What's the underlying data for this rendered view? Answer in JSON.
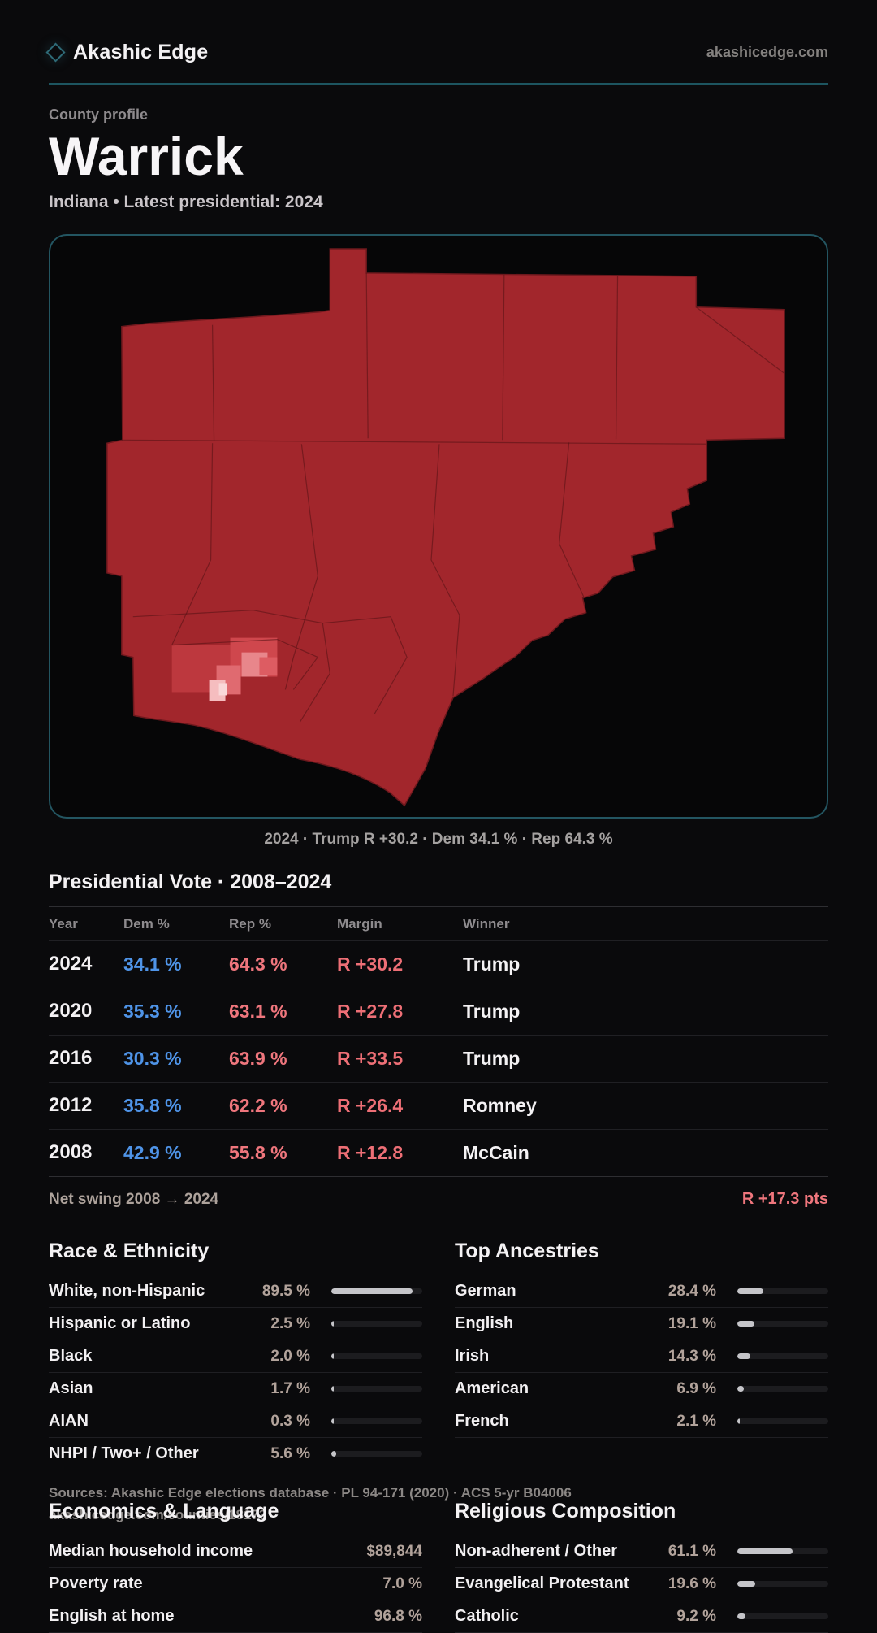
{
  "brand": {
    "name": "Akashic Edge",
    "domain": "akashicedge.com"
  },
  "hero": {
    "eyebrow": "County profile",
    "title": "Warrick",
    "subtitle": "Indiana • Latest presidential: 2024"
  },
  "map": {
    "caption": "2024 · Trump R +30.2 · Dem 34.1 % · Rep 64.3 %",
    "fill_color": "#a2262c",
    "border_color": "#235561"
  },
  "vote": {
    "title": "Presidential Vote · 2008–2024",
    "columns": {
      "year": "Year",
      "dem": "Dem %",
      "rep": "Rep %",
      "margin": "Margin",
      "winner": "Winner"
    },
    "rows": [
      {
        "year": "2024",
        "dem": "34.1 %",
        "rep": "64.3 %",
        "margin": "R +30.2",
        "winner": "Trump"
      },
      {
        "year": "2020",
        "dem": "35.3 %",
        "rep": "63.1 %",
        "margin": "R +27.8",
        "winner": "Trump"
      },
      {
        "year": "2016",
        "dem": "30.3 %",
        "rep": "63.9 %",
        "margin": "R +33.5",
        "winner": "Trump"
      },
      {
        "year": "2012",
        "dem": "35.8 %",
        "rep": "62.2 %",
        "margin": "R +26.4",
        "winner": "Romney"
      },
      {
        "year": "2008",
        "dem": "42.9 %",
        "rep": "55.8 %",
        "margin": "R +12.8",
        "winner": "McCain"
      }
    ],
    "net_swing_label": "Net swing 2008 → 2024",
    "net_swing_value": "R +17.3 pts",
    "dem_color": "#4f94e8",
    "rep_color": "#ef767d"
  },
  "race": {
    "title": "Race & Ethnicity",
    "rows": [
      {
        "label": "White, non-Hispanic",
        "value": "89.5 %",
        "pct": 89.5
      },
      {
        "label": "Hispanic or Latino",
        "value": "2.5 %",
        "pct": 2.5
      },
      {
        "label": "Black",
        "value": "2.0 %",
        "pct": 2.0
      },
      {
        "label": "Asian",
        "value": "1.7 %",
        "pct": 1.7
      },
      {
        "label": "AIAN",
        "value": "0.3 %",
        "pct": 0.3
      },
      {
        "label": "NHPI / Two+ / Other",
        "value": "5.6 %",
        "pct": 5.6
      }
    ]
  },
  "ancestries": {
    "title": "Top Ancestries",
    "rows": [
      {
        "label": "German",
        "value": "28.4 %",
        "pct": 28.4
      },
      {
        "label": "English",
        "value": "19.1 %",
        "pct": 19.1
      },
      {
        "label": "Irish",
        "value": "14.3 %",
        "pct": 14.3
      },
      {
        "label": "American",
        "value": "6.9 %",
        "pct": 6.9
      },
      {
        "label": "French",
        "value": "2.1 %",
        "pct": 2.1
      }
    ]
  },
  "economics": {
    "title": "Economics & Language",
    "rows": [
      {
        "label": "Median household income",
        "value": "$89,844"
      },
      {
        "label": "Poverty rate",
        "value": "7.0 %"
      },
      {
        "label": "English at home",
        "value": "96.8 %"
      }
    ]
  },
  "religion": {
    "title": "Religious Composition",
    "rows": [
      {
        "label": "Non-adherent / Other",
        "value": "61.1 %",
        "pct": 61.1
      },
      {
        "label": "Evangelical Protestant",
        "value": "19.6 %",
        "pct": 19.6
      },
      {
        "label": "Catholic",
        "value": "9.2 %",
        "pct": 9.2
      }
    ]
  },
  "footer": {
    "line1": "Sources: Akashic Edge elections database · PL 94-171 (2020) · ACS 5-yr B04006",
    "line2": "akashicedge.com/counties/18173"
  }
}
